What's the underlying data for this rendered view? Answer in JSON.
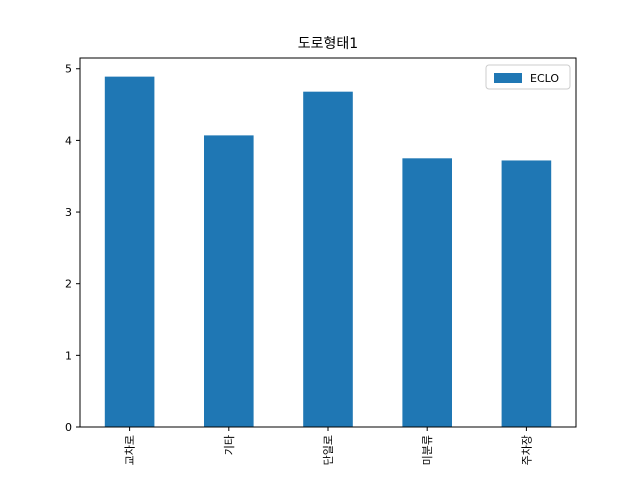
{
  "chart_data": {
    "type": "bar",
    "title": "도로형태1",
    "xlabel": "",
    "ylabel": "",
    "categories": [
      "교차로",
      "기타",
      "단일로",
      "미분류",
      "주차장"
    ],
    "series": [
      {
        "name": "ECLO",
        "values": [
          4.89,
          4.07,
          4.68,
          3.75,
          3.72
        ]
      }
    ],
    "ylim": [
      0,
      5.15
    ],
    "yticks": [
      "0",
      "1",
      "2",
      "3",
      "4",
      "5"
    ],
    "legend_position": "top-right",
    "grid": false,
    "colors": {
      "bar": "#1f77b4",
      "axis": "#000000",
      "background": "#ffffff"
    }
  }
}
